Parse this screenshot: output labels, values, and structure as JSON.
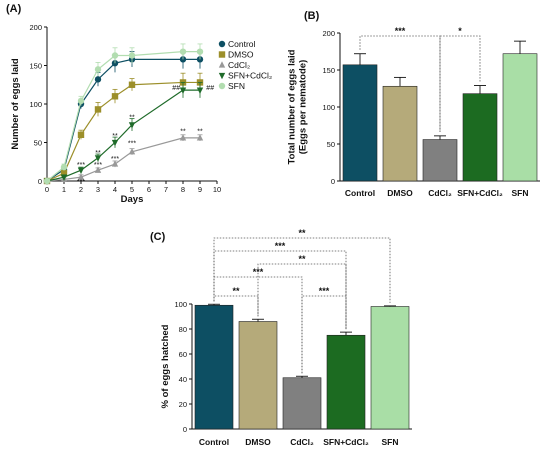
{
  "chart_data": [
    {
      "panel": "(A)",
      "type": "line",
      "xlabel": "Days",
      "ylabel": "Number of eggs laid",
      "xlim": [
        0,
        10
      ],
      "ylim": [
        0,
        200
      ],
      "xticks": [
        0,
        1,
        2,
        3,
        4,
        5,
        6,
        7,
        8,
        9,
        10
      ],
      "yticks": [
        0,
        50,
        100,
        150,
        200
      ],
      "legend_position": "top-right",
      "x": [
        0,
        1,
        2,
        3,
        4,
        5,
        8,
        9
      ],
      "series": [
        {
          "name": "Control",
          "values": [
            0,
            15,
            100,
            132,
            153,
            158,
            158,
            158
          ],
          "errors": [
            2,
            4,
            6,
            9,
            12,
            10,
            12,
            12
          ],
          "color": "#0d4f63",
          "marker": "circle"
        },
        {
          "name": "DMSO",
          "values": [
            0,
            10,
            60,
            93,
            110,
            125,
            128,
            128
          ],
          "errors": [
            2,
            4,
            6,
            9,
            9,
            8,
            12,
            12
          ],
          "color": "#9c8f2a",
          "marker": "square"
        },
        {
          "name": "CdCl₂",
          "values": [
            0,
            2,
            5,
            14,
            22,
            38,
            56,
            56
          ],
          "errors": [
            1,
            2,
            3,
            3,
            4,
            4,
            4,
            4
          ],
          "color": "#999999",
          "marker": "triangle-up"
        },
        {
          "name": "SFN+CdCl₂",
          "values": [
            0,
            5,
            14,
            30,
            50,
            73,
            118,
            118
          ],
          "errors": [
            1,
            3,
            4,
            5,
            7,
            8,
            10,
            10
          ],
          "color": "#1f6b2a",
          "marker": "triangle-down"
        },
        {
          "name": "SFN",
          "values": [
            0,
            18,
            104,
            145,
            163,
            163,
            168,
            168
          ],
          "errors": [
            2,
            4,
            6,
            9,
            10,
            10,
            10,
            10
          ],
          "color": "#b2ddb0",
          "marker": "circle"
        }
      ],
      "annotations": [
        {
          "x": 2,
          "y": 18,
          "text": "***"
        },
        {
          "x": 2,
          "y": -4,
          "text": "***"
        },
        {
          "x": 3,
          "y": 34,
          "text": "**"
        },
        {
          "x": 3,
          "y": 18,
          "text": "***"
        },
        {
          "x": 4,
          "y": 56,
          "text": "**"
        },
        {
          "x": 4,
          "y": 26,
          "text": "***"
        },
        {
          "x": 5,
          "y": 80,
          "text": "**"
        },
        {
          "x": 5,
          "y": 46,
          "text": "***"
        },
        {
          "x": 8,
          "y": 62,
          "text": "**"
        },
        {
          "x": 9,
          "y": 62,
          "text": "**"
        },
        {
          "x": 7.6,
          "y": 118,
          "text": "##"
        },
        {
          "x": 9.6,
          "y": 118,
          "text": "##"
        }
      ]
    },
    {
      "panel": "(B)",
      "type": "bar",
      "ylabel": "Total number of eggs laid\n(Eggs per nematode)",
      "ylim": [
        0,
        200
      ],
      "yticks": [
        0,
        50,
        100,
        150,
        200
      ],
      "categories": [
        "Control",
        "DMSO",
        "CdCl₂",
        "SFN+CdCl₂",
        "SFN"
      ],
      "values": [
        157,
        128,
        56,
        118,
        172
      ],
      "errors": [
        15,
        12,
        5,
        11,
        17
      ],
      "colors": [
        "#0d4f63",
        "#b5aa7a",
        "#808080",
        "#1c6b21",
        "#a9dea6"
      ],
      "significance": [
        {
          "from": 0,
          "to": 2,
          "text": "***"
        },
        {
          "from": 2,
          "to": 3,
          "text": "*"
        }
      ]
    },
    {
      "panel": "(C)",
      "type": "bar",
      "ylabel": "% of eggs hatched",
      "ylim": [
        0,
        100
      ],
      "yticks": [
        0,
        20,
        40,
        60,
        80,
        100
      ],
      "categories": [
        "Control",
        "DMSO",
        "CdCl₂",
        "SFN+CdCl₂",
        "SFN"
      ],
      "values": [
        99,
        86,
        41,
        75,
        98
      ],
      "errors": [
        0.8,
        1.8,
        1.2,
        2.5,
        0.5
      ],
      "colors": [
        "#0d4f63",
        "#b5aa7a",
        "#808080",
        "#1c6b21",
        "#a9dea6"
      ],
      "significance": [
        {
          "from": 0,
          "to": 4,
          "text": "**"
        },
        {
          "from": 0,
          "to": 3,
          "text": "***"
        },
        {
          "from": 1,
          "to": 3,
          "text": "**"
        },
        {
          "from": 0,
          "to": 2,
          "text": "***"
        },
        {
          "from": 0,
          "to": 1,
          "text": "**"
        },
        {
          "from": 2,
          "to": 3,
          "text": "***"
        }
      ]
    }
  ]
}
